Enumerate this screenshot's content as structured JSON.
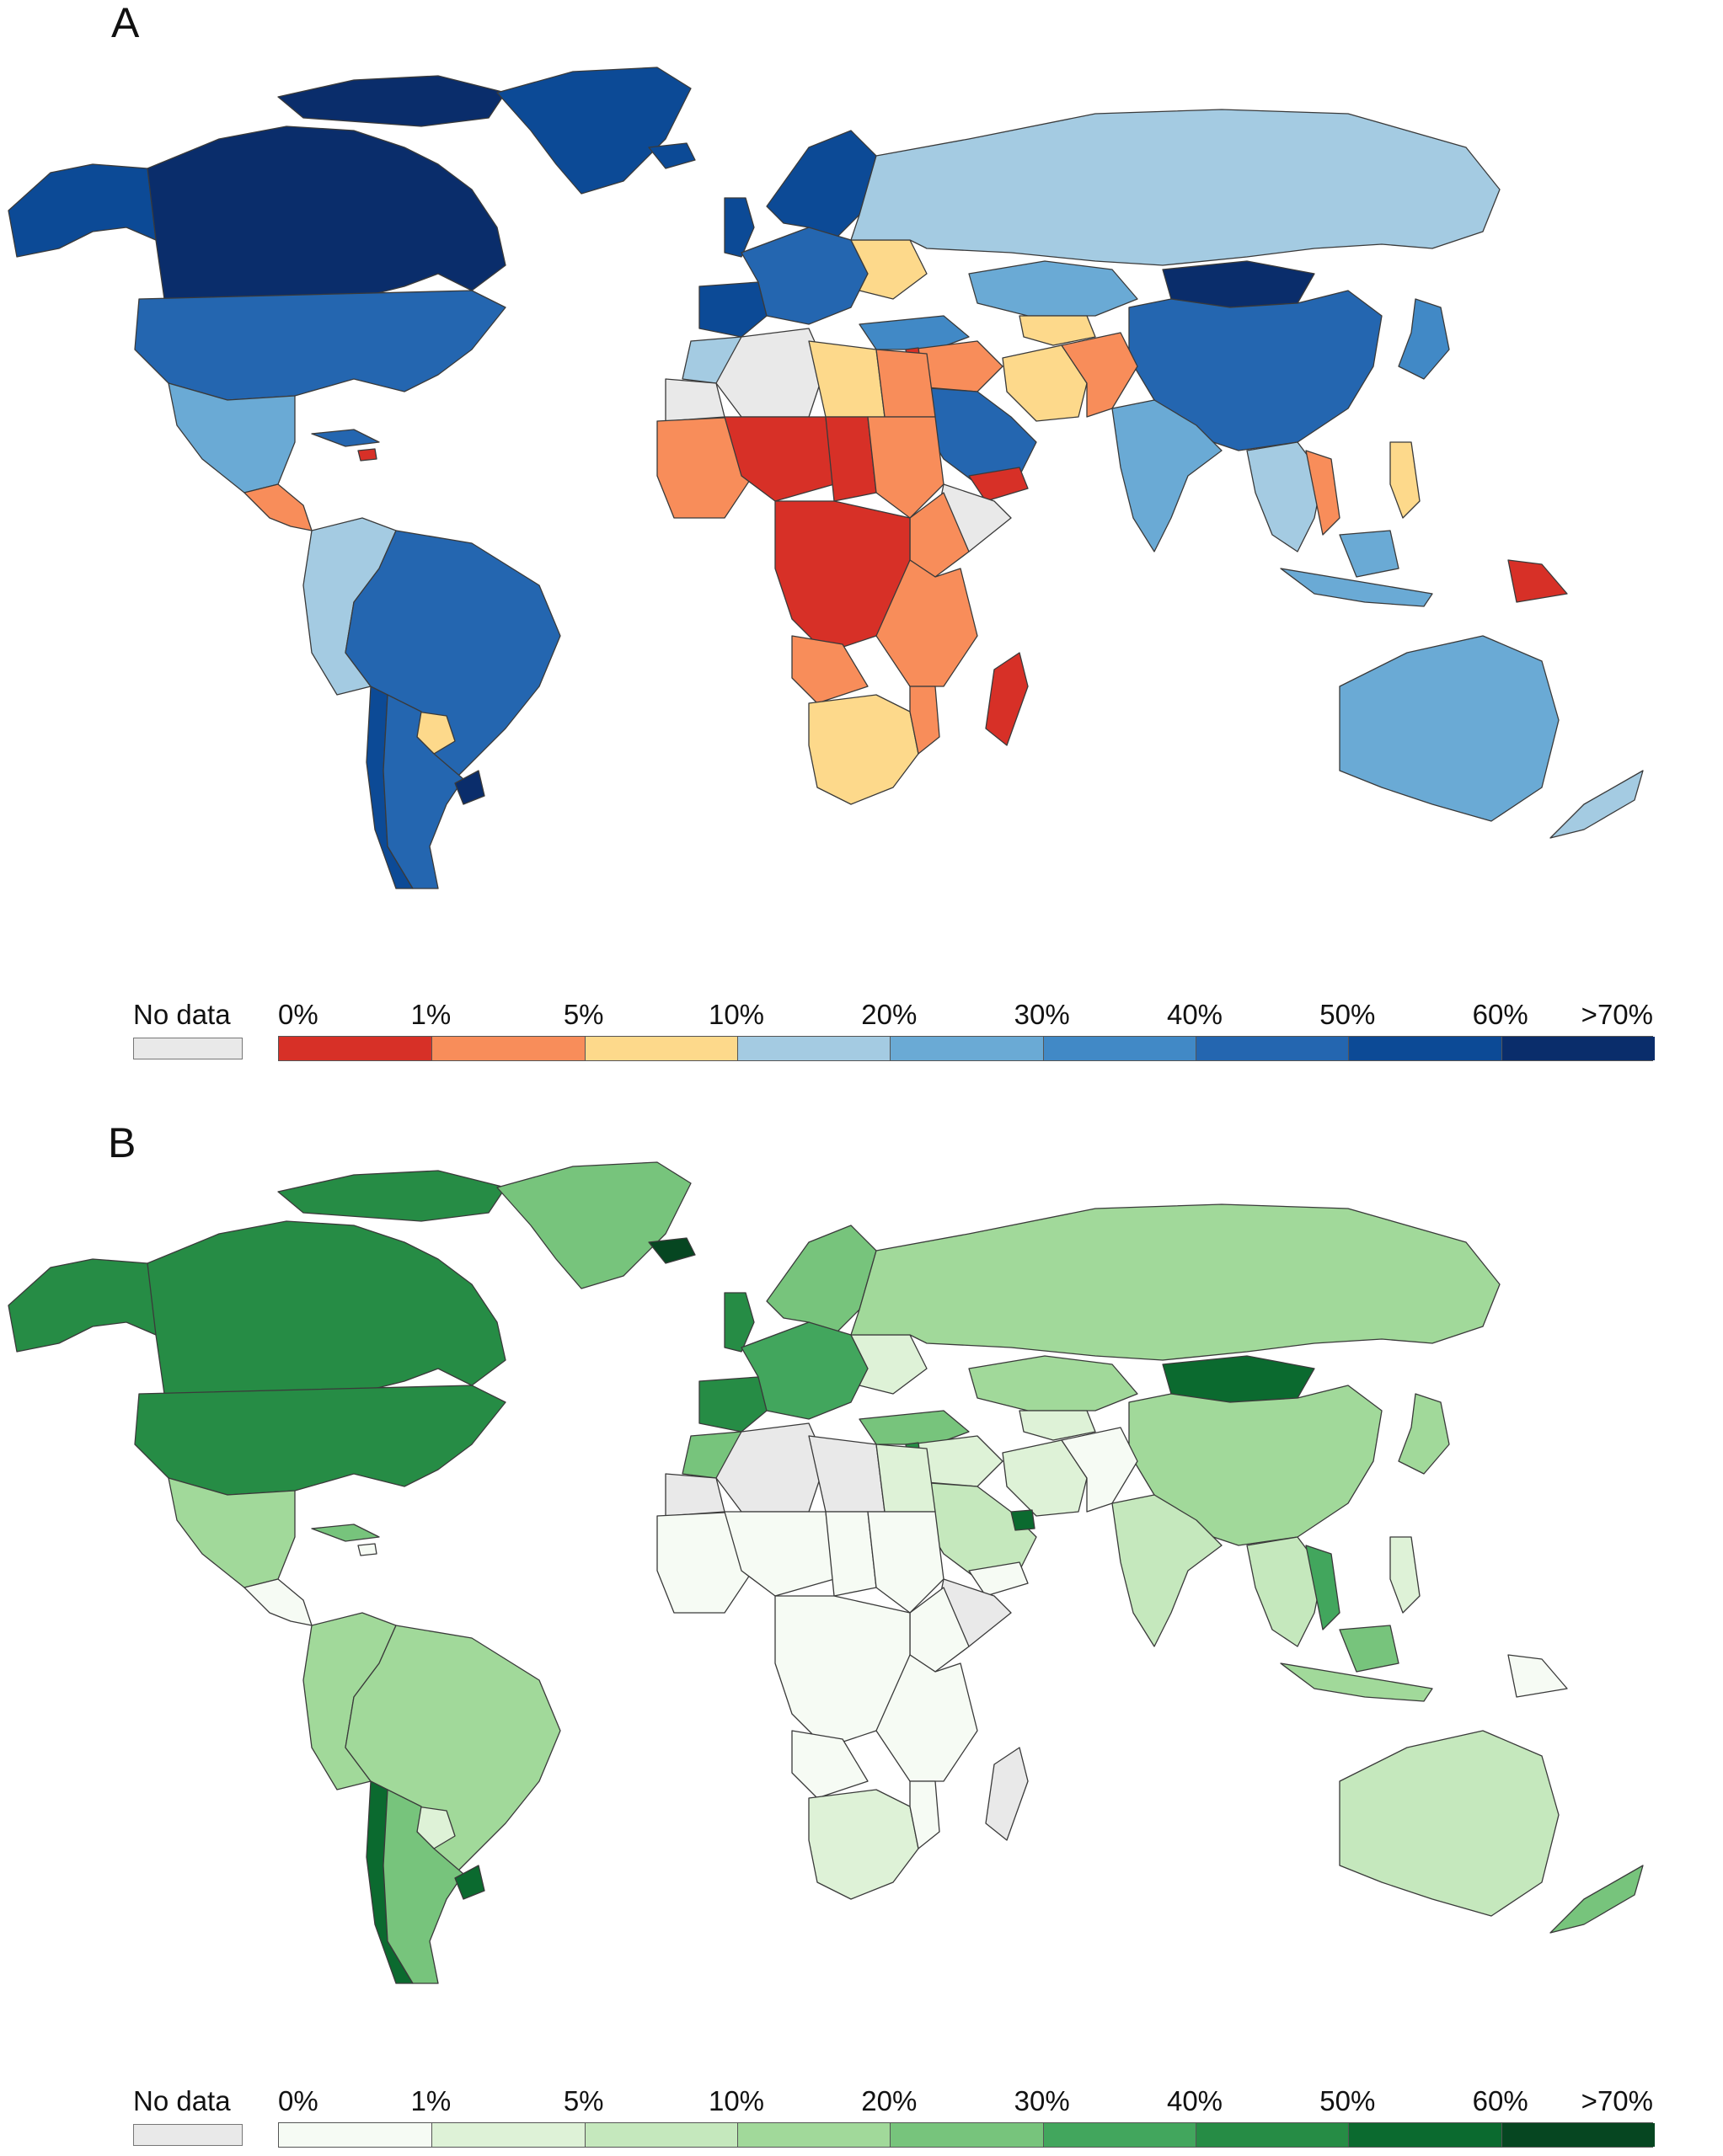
{
  "panels": [
    {
      "label": "A",
      "legend": {
        "no_data_label": "No data",
        "no_data_color": "#e9e9e9",
        "ticks": [
          "0%",
          "1%",
          "5%",
          "10%",
          "20%",
          "30%",
          "40%",
          "50%",
          "60%",
          ">70%"
        ],
        "colors": [
          "#d73027",
          "#f88d5a",
          "#fdd98b",
          "#a4cbe2",
          "#6aaad5",
          "#4189c6",
          "#2466b0",
          "#0c4a96",
          "#0a2d6b"
        ]
      }
    },
    {
      "label": "B",
      "legend": {
        "no_data_label": "No data",
        "no_data_color": "#e9e9e9",
        "ticks": [
          "0%",
          "1%",
          "5%",
          "10%",
          "20%",
          "30%",
          "40%",
          "50%",
          "60%",
          ">70%"
        ],
        "colors": [
          "#f6fbf4",
          "#def2d7",
          "#c5e8bd",
          "#a1d99a",
          "#77c47c",
          "#42a65d",
          "#268c45",
          "#0b6a2f",
          "#064621"
        ]
      }
    }
  ]
}
